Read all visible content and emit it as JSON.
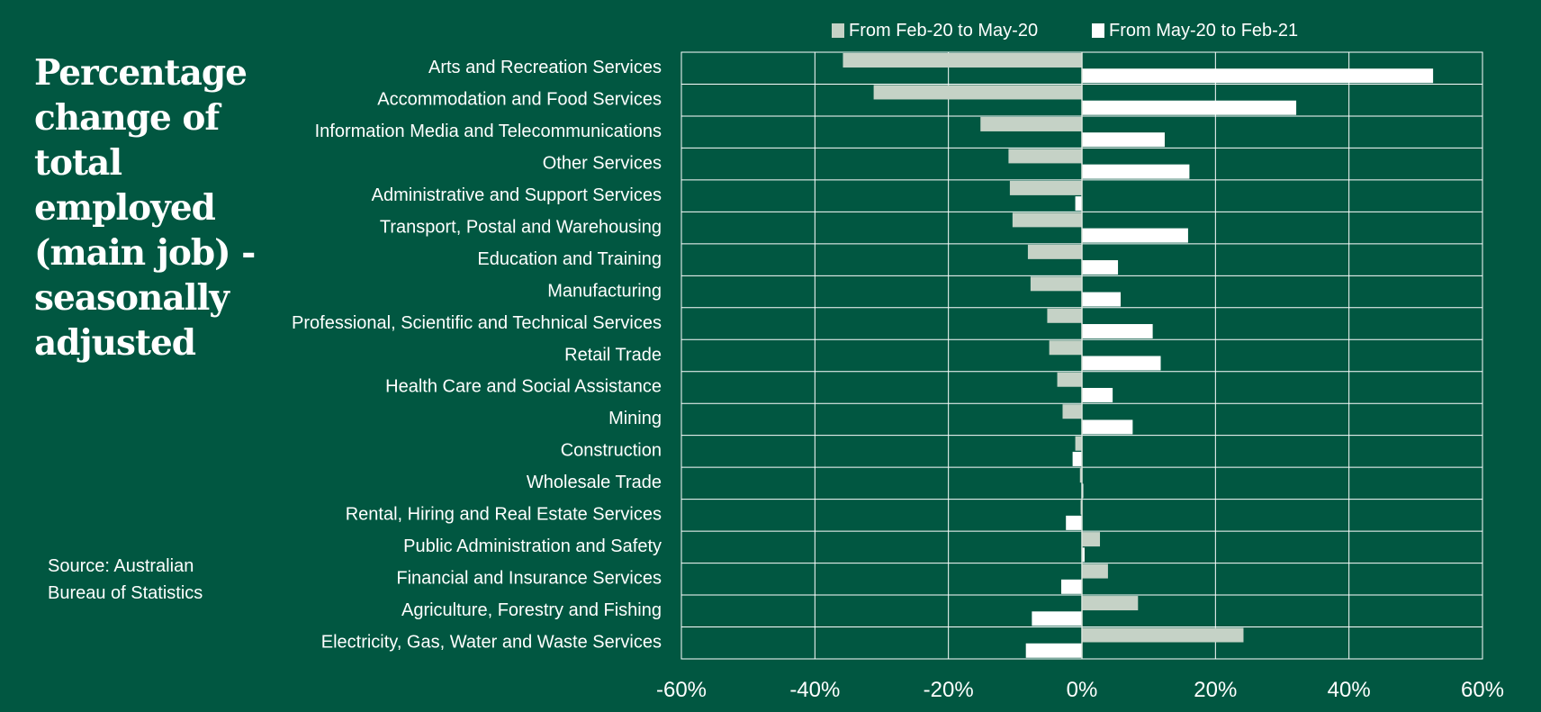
{
  "title": "Percentage change of total employed (main job) - seasonally adjusted",
  "source": "Source:  Australian Bureau of Statistics",
  "colors": {
    "background": "#015741",
    "series1": "#c5d2c6",
    "series2": "#ffffff",
    "grid": "#ffffff"
  },
  "chart_data": {
    "type": "bar",
    "orientation": "horizontal",
    "categories": [
      "Arts and Recreation Services",
      "Accommodation and Food Services",
      "Information Media and Telecommunications",
      "Other Services",
      "Administrative and Support Services",
      "Transport, Postal and Warehousing",
      "Education and Training",
      "Manufacturing",
      "Professional, Scientific and Technical Services",
      "Retail Trade",
      "Health Care and Social Assistance",
      "Mining",
      "Construction",
      "Wholesale Trade",
      "Rental, Hiring and Real Estate Services",
      "Public Administration and Safety",
      "Financial and Insurance Services",
      "Agriculture, Forestry and Fishing",
      "Electricity, Gas, Water and Waste Services"
    ],
    "series": [
      {
        "name": "From Feb-20 to May-20",
        "values": [
          -35.8,
          -31.2,
          -15.2,
          -11.0,
          -10.8,
          -10.4,
          -8.1,
          -7.7,
          -5.2,
          -4.9,
          -3.7,
          -2.9,
          -1.0,
          -0.3,
          -0.2,
          2.7,
          3.9,
          8.4,
          24.2
        ]
      },
      {
        "name": "From May-20 to Feb-21",
        "values": [
          52.6,
          32.1,
          12.4,
          16.1,
          -1.0,
          15.9,
          5.4,
          5.8,
          10.6,
          11.8,
          4.6,
          7.6,
          -1.4,
          0.2,
          -2.4,
          0.4,
          -3.1,
          -7.5,
          -8.4
        ]
      }
    ],
    "x_ticks": [
      "-60%",
      "-40%",
      "-20%",
      "0%",
      "20%",
      "40%",
      "60%"
    ],
    "xlim": [
      -60,
      60
    ],
    "grid": true,
    "legend_position": "top"
  }
}
